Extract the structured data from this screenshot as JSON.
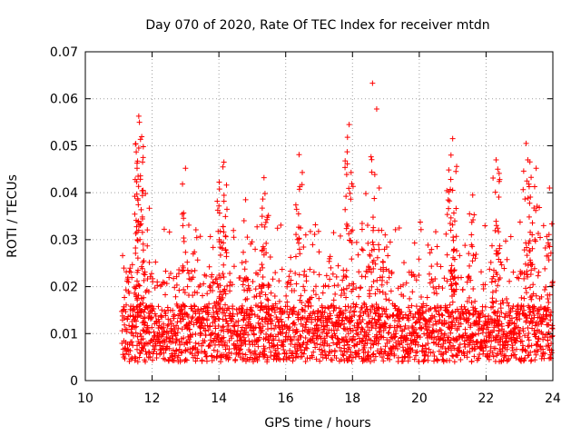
{
  "chart_data": {
    "type": "scatter",
    "title": "Day 070 of 2020, Rate Of TEC Index for receiver mtdn",
    "xlabel": "GPS time / hours",
    "ylabel": "ROTI / TECUs",
    "xlim": [
      10,
      24
    ],
    "ylim": [
      0,
      0.07
    ],
    "x_ticks": [
      10,
      12,
      14,
      16,
      18,
      20,
      22,
      24
    ],
    "x_tick_labels": [
      "10",
      "12",
      "14",
      "16",
      "18",
      "20",
      "22",
      "24"
    ],
    "y_ticks": [
      0,
      0.01,
      0.02,
      0.03,
      0.04,
      0.05,
      0.06,
      0.07
    ],
    "y_tick_labels": [
      "0",
      "0.01",
      "0.02",
      "0.03",
      "0.04",
      "0.05",
      "0.06",
      "0.07"
    ],
    "grid": true,
    "legend": "none",
    "marker": "+",
    "series": [
      {
        "name": "ROTI",
        "color": "#ff0000",
        "x_range": [
          11.1,
          24.0
        ],
        "typical_range": [
          0.004,
          0.02
        ],
        "peaks": [
          {
            "x": 11.6,
            "y": 0.0563
          },
          {
            "x": 11.62,
            "y": 0.055
          },
          {
            "x": 11.6,
            "y": 0.0495
          },
          {
            "x": 11.58,
            "y": 0.0435
          },
          {
            "x": 11.8,
            "y": 0.0398
          },
          {
            "x": 13.0,
            "y": 0.0452
          },
          {
            "x": 14.15,
            "y": 0.0465
          },
          {
            "x": 14.12,
            "y": 0.0455
          },
          {
            "x": 13.95,
            "y": 0.0382
          },
          {
            "x": 14.8,
            "y": 0.0385
          },
          {
            "x": 15.35,
            "y": 0.0432
          },
          {
            "x": 15.38,
            "y": 0.0398
          },
          {
            "x": 16.4,
            "y": 0.0481
          },
          {
            "x": 17.9,
            "y": 0.0545
          },
          {
            "x": 17.85,
            "y": 0.0518
          },
          {
            "x": 18.6,
            "y": 0.0633
          },
          {
            "x": 18.4,
            "y": 0.0398
          },
          {
            "x": 18.8,
            "y": 0.041
          },
          {
            "x": 21.0,
            "y": 0.0515
          },
          {
            "x": 20.95,
            "y": 0.048
          },
          {
            "x": 21.0,
            "y": 0.0405
          },
          {
            "x": 21.6,
            "y": 0.0395
          },
          {
            "x": 22.3,
            "y": 0.047
          },
          {
            "x": 22.35,
            "y": 0.045
          },
          {
            "x": 23.2,
            "y": 0.0505
          },
          {
            "x": 23.25,
            "y": 0.047
          },
          {
            "x": 23.5,
            "y": 0.0452
          },
          {
            "x": 23.9,
            "y": 0.041
          }
        ]
      }
    ]
  }
}
